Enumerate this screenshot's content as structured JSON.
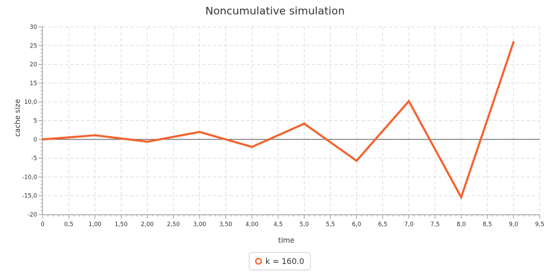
{
  "chart_data": {
    "type": "line",
    "title": "Noncumulative simulation",
    "xlabel": "time",
    "ylabel": "cache size",
    "xlim": [
      0,
      9.5
    ],
    "ylim": [
      -20,
      30
    ],
    "x_ticks": [
      0,
      0.5,
      1,
      1.5,
      2,
      2.5,
      3,
      3.5,
      4,
      4.5,
      5,
      5.5,
      6,
      6.5,
      7,
      7.5,
      8,
      8.5,
      9,
      9.5
    ],
    "x_tick_labels": [
      "0",
      "0,5",
      "1,00",
      "1,50",
      "2,00",
      "2,50",
      "3,00",
      "3,50",
      "4,00",
      "4,5",
      "5,0",
      "5,5",
      "6,0",
      "6,5",
      "7,0",
      "7,5",
      "8,0",
      "8,5",
      "9,0",
      "9,5"
    ],
    "y_ticks": [
      -20,
      -15,
      -10,
      -5,
      0,
      5,
      10,
      15,
      20,
      25,
      30
    ],
    "y_tick_labels": [
      "-20",
      "-15,0",
      "-10,0",
      "-5",
      "0",
      "5",
      "10,0",
      "15",
      "20",
      "25",
      "30"
    ],
    "grid": true,
    "zero_line": true,
    "legend_position": "bottom-center",
    "series": [
      {
        "name": "k = 160.0",
        "color": "#f3622d",
        "x": [
          0,
          1,
          2,
          3,
          4,
          5,
          6,
          7,
          8,
          9
        ],
        "y": [
          0,
          1.1,
          -0.6,
          2.0,
          -2.0,
          4.2,
          -5.7,
          10.2,
          -15.4,
          25.9
        ]
      }
    ]
  }
}
